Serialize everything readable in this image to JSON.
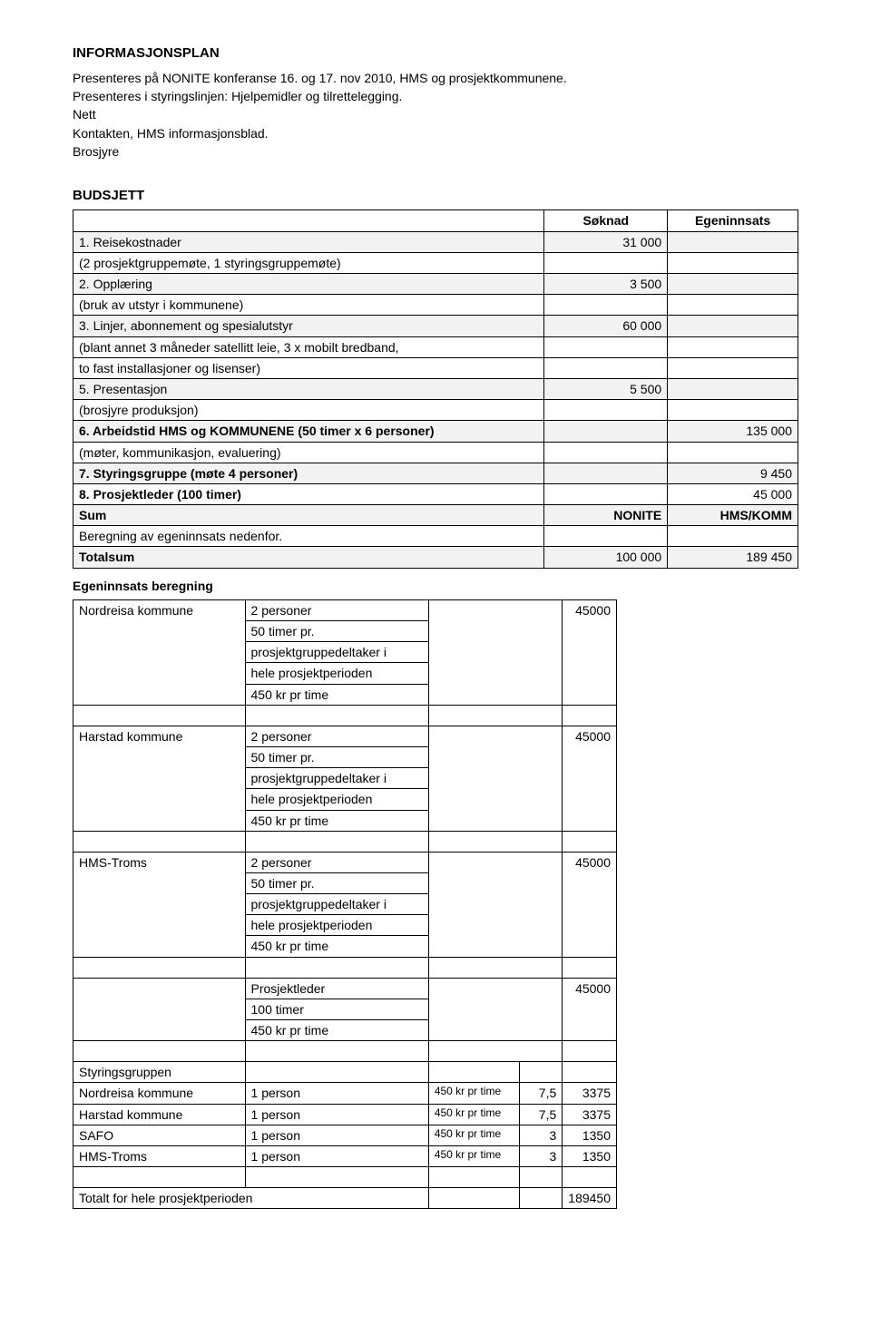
{
  "heading": "INFORMASJONSPLAN",
  "intro": {
    "l1": "Presenteres på NONITE konferanse 16. og 17. nov 2010, HMS og prosjektkommunene.",
    "l2": "Presenteres i styringslinjen: Hjelpemidler og tilrettelegging.",
    "l3": "Nett",
    "l4": "Kontakten, HMS informasjonsblad.",
    "l5": "Brosjyre"
  },
  "budget_heading": "BUDSJETT",
  "budget": {
    "col_soknad": "Søknad",
    "col_egen": "Egeninnsats",
    "r1_label": "1.  Reisekostnader",
    "r1_val": "31 000",
    "r1_sub": "(2 prosjektgruppemøte, 1 styringsgruppemøte)",
    "r2_label": "2.  Opplæring",
    "r2_val": "3 500",
    "r2_sub": "(bruk av utstyr i kommunene)",
    "r3_label": "3. Linjer, abonnement og spesialutstyr",
    "r3_val": "60 000",
    "r3_sub1": "(blant annet 3 måneder satellitt leie, 3 x mobilt bredband,",
    "r3_sub2": "to fast installasjoner og lisenser)",
    "r5_label": "5. Presentasjon",
    "r5_val": "5 500",
    "r5_sub": "(brosjyre produksjon)",
    "r6_label": "6. Arbeidstid HMS og KOMMUNENE (50 timer x 6 personer)",
    "r6_val": "135 000",
    "r6_sub": "(møter, kommunikasjon, evaluering)",
    "r7_label": "7. Styringsgruppe (møte 4 personer)",
    "r7_val": "9 450",
    "r8_label": "8.  Prosjektleder (100 timer)",
    "r8_val": "45 000",
    "sum_label": "Sum",
    "sum_c2": "NONITE",
    "sum_c3": "HMS/KOMM",
    "calc_note": "Beregning av egeninnsats nedenfor.",
    "total_label": "Totalsum",
    "total_c2": "100 000",
    "total_c3": "189 450"
  },
  "egen_heading": "Egeninnsats beregning",
  "egen": {
    "nordreisa": "Nordreisa kommune",
    "harstad": "Harstad kommune",
    "hms": "HMS-Troms",
    "desc_l1": "2 personer",
    "desc_l2": "50 timer pr.",
    "desc_l3": "prosjektgruppedeltaker i",
    "desc_l4": "hele prosjektperioden",
    "desc_l5": "450 kr pr time",
    "val_45000": "45000",
    "pl_l1": "Prosjektleder",
    "pl_l2": "100 timer",
    "pl_l3": "450 kr pr time",
    "styr_head": "Styringsgruppen",
    "rate_small": "450 kr pr time",
    "one_person": "1 person",
    "h75": "7,5",
    "v3375": "3375",
    "h3": "3",
    "v1350": "1350",
    "safo": "SAFO",
    "total_label": "Totalt for hele prosjektperioden",
    "total_val": "189450"
  }
}
